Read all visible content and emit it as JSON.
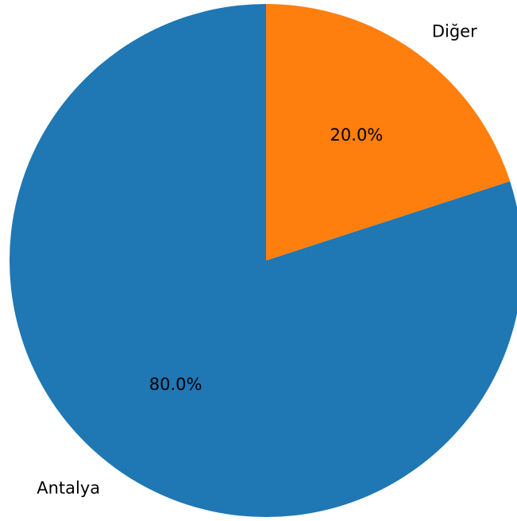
{
  "chart_data": {
    "type": "pie",
    "categories": [
      "Antalya",
      "Diğer"
    ],
    "values": [
      80,
      20
    ],
    "value_labels": [
      "80.0%",
      "20.0%"
    ],
    "colors": [
      "#1f77b4",
      "#ff7f0e"
    ],
    "start_angle": 90,
    "counterclock": true
  }
}
